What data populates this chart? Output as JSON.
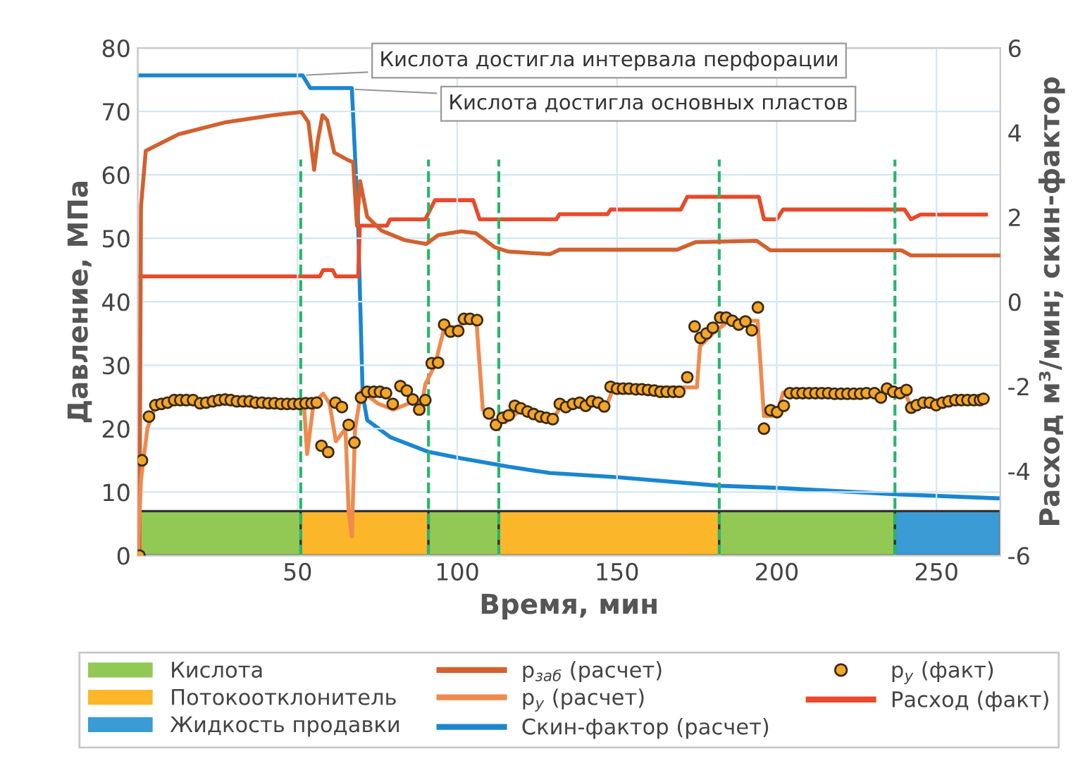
{
  "chart_data": {
    "type": "line",
    "xlabel": "Время, мин",
    "ylabel": "Давление, МПа",
    "y2label": "Расход м³/мин; скин-фактор",
    "xlim": [
      0,
      270
    ],
    "xticks": [
      50,
      100,
      150,
      200,
      250
    ],
    "ylim": [
      0,
      80
    ],
    "yticks": [
      0,
      10,
      20,
      30,
      40,
      50,
      60,
      70,
      80
    ],
    "y2lim": [
      -6,
      6
    ],
    "y2ticks": [
      -6,
      -4,
      -2,
      0,
      2,
      4,
      6
    ],
    "grid": true,
    "legend": "bottom",
    "series": [
      {
        "name": "p$_{заб}$ (расчет)",
        "color": "#d2612f",
        "x": [
          0.5,
          1,
          2.5,
          12.8,
          27.6,
          42.3,
          51.2,
          53.4,
          55.2,
          56.3,
          57.8,
          59.3,
          61.5,
          65.9,
          67.4,
          68.6,
          69.6,
          71.8,
          76.3,
          83.6,
          90.3,
          94,
          101.3,
          105.8,
          111.7,
          116,
          129,
          132,
          168.8,
          174.6,
          193.7,
          198,
          239,
          242,
          270
        ],
        "values": [
          0,
          55,
          63.8,
          66.4,
          68.3,
          69.4,
          69.9,
          68.3,
          60.8,
          65.3,
          69.4,
          68.6,
          63.5,
          62.3,
          62,
          52,
          59,
          53.4,
          51.2,
          49.7,
          49.1,
          50.5,
          51.1,
          50.8,
          48.6,
          47.9,
          47.5,
          48.2,
          48.2,
          49.4,
          49.6,
          48.1,
          48.1,
          47.3,
          47.3
        ]
      },
      {
        "name": "p$_{у}$ (расчет)",
        "color": "#f08a4e",
        "x": [
          0,
          1,
          3,
          5,
          10,
          50,
          52,
          53,
          55,
          58,
          60,
          62,
          65,
          66,
          67,
          68,
          70,
          75,
          80,
          85,
          89,
          90,
          93,
          96,
          100,
          103,
          106,
          108,
          112,
          115,
          120,
          130,
          133,
          147,
          149,
          175,
          176,
          180,
          185,
          194,
          196,
          200,
          202,
          235,
          240,
          242,
          250,
          265
        ],
        "values": [
          0,
          12,
          20,
          23,
          24,
          24,
          24,
          16,
          24,
          25.5,
          24,
          18,
          20,
          7,
          3,
          20,
          26,
          24,
          23,
          24,
          24,
          27,
          30,
          36,
          36,
          37,
          37,
          23,
          21,
          21,
          23,
          21.5,
          24,
          24,
          26.5,
          26.5,
          33,
          35,
          37,
          37,
          22,
          22,
          25.7,
          25.7,
          25.8,
          23.5,
          24.5,
          25
        ]
      },
      {
        "name": "Скин-фактор (расчет)",
        "color": "#1a86d0",
        "axis": "y2",
        "x": [
          0.5,
          51.6,
          54,
          67,
          68.9,
          70.4,
          71.8,
          79,
          91,
          101,
          116,
          129,
          150,
          182,
          200,
          237,
          270
        ],
        "values": [
          5.35,
          5.35,
          5.05,
          5.05,
          2.0,
          -2.2,
          -2.8,
          -3.2,
          -3.55,
          -3.7,
          -3.9,
          -4.05,
          -4.15,
          -4.35,
          -4.4,
          -4.55,
          -4.65
        ]
      },
      {
        "name": "p$_{у}$ (факт)",
        "type": "scatter",
        "marker": "circle",
        "color": "#f4a62a",
        "x": [
          0.5,
          1.3,
          3.5,
          5.5,
          7.4,
          9.3,
          11.4,
          13.3,
          15.2,
          17.3,
          19.5,
          21.4,
          23.5,
          25.4,
          27.3,
          29.1,
          31,
          33,
          35,
          36.9,
          38.9,
          40.9,
          42.8,
          44.8,
          46.8,
          48.7,
          50.6,
          52.5,
          54.4,
          56,
          57.5,
          59.6,
          61.9,
          63.9,
          66,
          67.8,
          69.9,
          71.8,
          73.9,
          75.8,
          77.7,
          79.8,
          82.2,
          84.2,
          86.1,
          88.1,
          90,
          92,
          94,
          95.9,
          97.9,
          100.3,
          102.1,
          104,
          106.2,
          109.9,
          112.1,
          114.2,
          116.1,
          118,
          119.9,
          122,
          123.9,
          126,
          127.9,
          129.9,
          132.1,
          134,
          136.2,
          138.3,
          140.2,
          142.1,
          144.1,
          146,
          148,
          150,
          151.9,
          153.8,
          155.9,
          157.8,
          159.7,
          161.7,
          163.6,
          165.5,
          167.6,
          169.5,
          172,
          174.3,
          176.1,
          178,
          180,
          182.3,
          184.2,
          186.1,
          188.1,
          190.2,
          192.2,
          194.1,
          196,
          198.1,
          200.1,
          202.2,
          204.1,
          206.2,
          208.1,
          210.1,
          212.1,
          214.1,
          216.1,
          218.1,
          220.1,
          222.1,
          224.1,
          226.1,
          228.1,
          230.6,
          232.6,
          234.5,
          236.5,
          238.6,
          240.6,
          242.1,
          243.8,
          245.9,
          247.9,
          249.9,
          251.9,
          253.8,
          255.9,
          257.8,
          259.7,
          261.7,
          263.6,
          264.7
        ],
        "values": [
          0,
          15.0,
          21.9,
          23.7,
          23.9,
          24.1,
          24.5,
          24.5,
          24.5,
          24.5,
          24.0,
          24.1,
          24.3,
          24.5,
          24.6,
          24.5,
          24.3,
          24.3,
          24.3,
          24.1,
          24.1,
          24.0,
          24.0,
          23.9,
          23.9,
          23.9,
          23.9,
          24.0,
          24.0,
          24.1,
          17.3,
          16.3,
          24.1,
          23.4,
          20.6,
          17.8,
          24.9,
          25.8,
          25.8,
          25.8,
          25.6,
          23.9,
          26.7,
          26.0,
          24.6,
          23.0,
          24.5,
          30.3,
          30.4,
          36.4,
          35.3,
          35.4,
          37.3,
          37.3,
          37.1,
          22.4,
          20.6,
          21.7,
          22.1,
          23.6,
          23.2,
          22.7,
          22.3,
          21.9,
          21.7,
          21.5,
          23.9,
          23.4,
          23.9,
          24.1,
          23.6,
          24.3,
          24.1,
          23.5,
          26.6,
          26.3,
          26.3,
          26.3,
          26.2,
          26.2,
          26.1,
          26.0,
          25.8,
          25.8,
          25.8,
          25.8,
          28.1,
          36.1,
          34.3,
          35.0,
          35.9,
          37.5,
          37.5,
          37.0,
          36.4,
          36.9,
          35.5,
          39.1,
          20.0,
          22.9,
          22.6,
          23.6,
          25.6,
          25.6,
          25.6,
          25.6,
          25.6,
          25.6,
          25.6,
          25.5,
          25.5,
          25.5,
          25.5,
          25.5,
          25.6,
          25.6,
          24.9,
          26.3,
          25.8,
          25.6,
          26.1,
          23.3,
          23.7,
          24.1,
          24.1,
          23.7,
          24.1,
          24.3,
          24.5,
          24.5,
          24.5,
          24.5,
          24.5,
          24.7
        ]
      },
      {
        "name": "Расход (факт)",
        "color": "#e84a2a",
        "axis": "y2",
        "x": [
          0.5,
          57,
          58,
          61,
          62,
          69,
          69.5,
          78,
          79,
          90,
          91,
          93,
          105,
          107,
          125,
          131,
          132,
          147,
          148,
          170,
          172,
          194.4,
          196,
          200,
          202,
          240,
          242,
          245,
          265.5
        ],
        "values": [
          0.6,
          0.6,
          0.75,
          0.75,
          0.6,
          0.6,
          1.8,
          1.8,
          1.95,
          1.95,
          2.1,
          2.4,
          2.4,
          1.95,
          1.95,
          1.95,
          2.07,
          2.07,
          2.18,
          2.18,
          2.48,
          2.48,
          1.95,
          1.95,
          2.18,
          2.18,
          1.95,
          2.06,
          2.06
        ]
      }
    ],
    "bands": [
      {
        "axis": "x",
        "from": 0,
        "to": 51,
        "label": "Кислота",
        "color": "#92c955"
      },
      {
        "axis": "x",
        "from": 51,
        "to": 91,
        "label": "Потокоотклонитель",
        "color": "#fbb62a"
      },
      {
        "axis": "x",
        "from": 91,
        "to": 113,
        "color": "#92c955"
      },
      {
        "axis": "x",
        "from": 113,
        "to": 182,
        "color": "#fbb62a"
      },
      {
        "axis": "x",
        "from": 182,
        "to": 237,
        "color": "#92c955"
      },
      {
        "axis": "x",
        "from": 237,
        "to": 270,
        "label": "Жидкость продавки",
        "color": "#3a9bd5"
      }
    ],
    "ref_lines": [
      {
        "axis": "x",
        "value": 51,
        "color": "#2ab56a",
        "line_style": "dashed"
      },
      {
        "axis": "x",
        "value": 91,
        "color": "#2ab56a",
        "line_style": "dashed"
      },
      {
        "axis": "x",
        "value": 113,
        "color": "#2ab56a",
        "line_style": "dashed"
      },
      {
        "axis": "x",
        "value": 182,
        "color": "#2ab56a",
        "line_style": "dashed"
      },
      {
        "axis": "x",
        "value": 237,
        "color": "#2ab56a",
        "line_style": "dashed"
      }
    ],
    "annotations": [
      {
        "text": "Кислота достигла интервала перфорации",
        "x": 51.6,
        "y": 75.7
      },
      {
        "text": "Кислота достигла основных пластов",
        "x": 67,
        "y": 73.5
      }
    ]
  }
}
